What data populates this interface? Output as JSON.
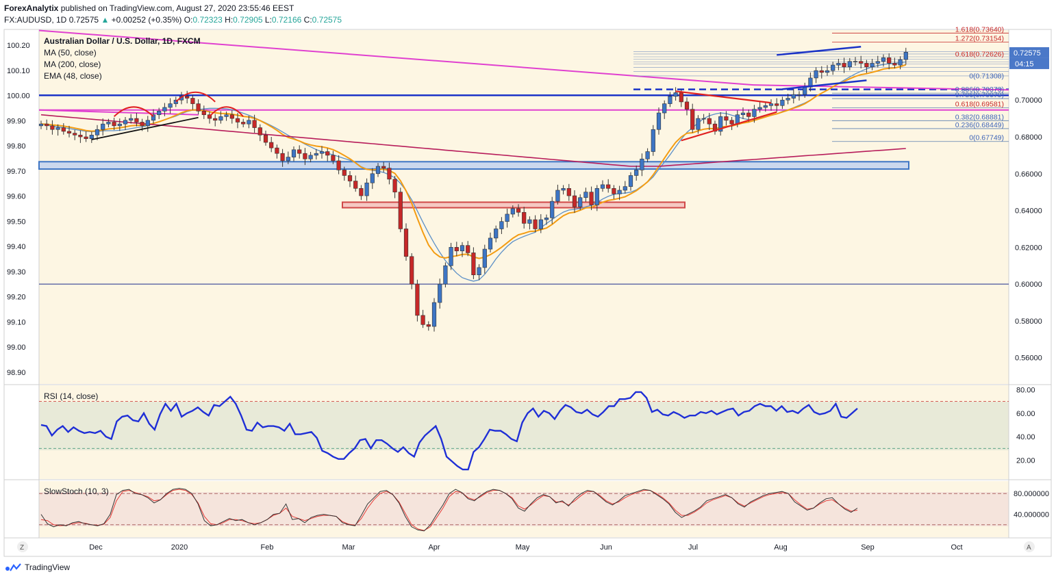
{
  "header": {
    "publisher": "ForexAnalytix",
    "published_text": "published on TradingView.com, August 27, 2020 23:55:46 EEST",
    "symbol": "FX:AUDUSD, 1D",
    "last": "0.72575",
    "change": "+0.00252 (+0.35%)",
    "open_label": "O:",
    "open": "0.72323",
    "high_label": "H:",
    "high": "0.72905",
    "low_label": "L:",
    "low": "0.72166",
    "close_label": "C:",
    "close": "0.72575"
  },
  "legend": {
    "title": "Australian Dollar / U.S. Dollar, 1D, FXCM",
    "ma50": "MA (50, close)",
    "ma200": "MA (200, close)",
    "ema48": "EMA (48, close)",
    "rsi": "RSI (14, close)",
    "stoch": "SlowStoch (10, 3)"
  },
  "colors": {
    "background": "#fdf6e3",
    "up": "#3d75c4",
    "down": "#c62828",
    "ma50": "#5b8fc7",
    "ma200": "#b71c5a",
    "ema48": "#f39c12",
    "pink_trend": "#e040d0",
    "blue_level": "#1a33c7",
    "rsi": "#1f2fd6",
    "stoch_k": "#333333",
    "stoch_d": "#e53935"
  },
  "chart_data": [
    {
      "type": "candlestick",
      "panel": "main",
      "x_labels": [
        "Dec",
        "2020",
        "Feb",
        "Mar",
        "Apr",
        "May",
        "Jun",
        "Jul",
        "Aug",
        "Sep",
        "Oct"
      ],
      "right_axis_ticks": [
        "0.70000",
        "0.68000",
        "0.66000",
        "0.64000",
        "0.62000",
        "0.60000",
        "0.58000",
        "0.56000"
      ],
      "left_axis_ticks": [
        "100.20",
        "100.10",
        "100.00",
        "99.90",
        "99.80",
        "99.70",
        "99.60",
        "99.50",
        "99.40",
        "99.30",
        "99.20",
        "99.10",
        "99.00",
        "98.90"
      ],
      "ylim_right": [
        0.548,
        0.738
      ],
      "last_price": "0.72575",
      "countdown": "04:15",
      "fib_upper": [
        {
          "label": "1.618(0.73640)",
          "value": 0.7364
        },
        {
          "label": "1.272(0.73154)",
          "value": 0.73154
        }
      ],
      "fib_lower": [
        {
          "label": "0.886(0.70373)",
          "value": 0.70373
        },
        {
          "label": "0.786(0.70079)",
          "value": 0.70079
        },
        {
          "label": "0.618(0.69581)",
          "value": 0.69581
        },
        {
          "label": "0.382(0.68881)",
          "value": 0.68881
        },
        {
          "label": "0.236(0.68449)",
          "value": 0.68449
        },
        {
          "label": "0(0.67749)",
          "value": 0.67749
        }
      ],
      "fib_cluster_labels": [
        "0.618(0.72626)",
        "0(0.71308)"
      ],
      "annotations": [
        "head and shoulders (Dec–Jan)",
        "rising wedge (Aug)",
        "triangle (Jun–Jul)"
      ],
      "closes": [
        0.687,
        0.686,
        0.684,
        0.685,
        0.683,
        0.682,
        0.681,
        0.68,
        0.679,
        0.681,
        0.684,
        0.687,
        0.688,
        0.686,
        0.687,
        0.689,
        0.69,
        0.688,
        0.686,
        0.689,
        0.692,
        0.694,
        0.696,
        0.698,
        0.7,
        0.702,
        0.701,
        0.698,
        0.694,
        0.692,
        0.69,
        0.689,
        0.691,
        0.692,
        0.69,
        0.688,
        0.687,
        0.689,
        0.685,
        0.681,
        0.677,
        0.674,
        0.671,
        0.667,
        0.669,
        0.673,
        0.671,
        0.668,
        0.67,
        0.671,
        0.672,
        0.67,
        0.667,
        0.662,
        0.659,
        0.656,
        0.652,
        0.648,
        0.655,
        0.66,
        0.664,
        0.663,
        0.657,
        0.65,
        0.63,
        0.615,
        0.6,
        0.583,
        0.578,
        0.577,
        0.59,
        0.6,
        0.61,
        0.62,
        0.618,
        0.621,
        0.617,
        0.605,
        0.609,
        0.619,
        0.625,
        0.63,
        0.634,
        0.638,
        0.641,
        0.639,
        0.633,
        0.635,
        0.63,
        0.635,
        0.636,
        0.645,
        0.651,
        0.652,
        0.648,
        0.642,
        0.647,
        0.65,
        0.643,
        0.652,
        0.654,
        0.652,
        0.649,
        0.651,
        0.653,
        0.659,
        0.662,
        0.668,
        0.672,
        0.684,
        0.693,
        0.698,
        0.702,
        0.704,
        0.699,
        0.695,
        0.684,
        0.69,
        0.69,
        0.687,
        0.683,
        0.691,
        0.689,
        0.687,
        0.692,
        0.693,
        0.691,
        0.695,
        0.696,
        0.697,
        0.698,
        0.697,
        0.7,
        0.701,
        0.703,
        0.703,
        0.707,
        0.712,
        0.716,
        0.715,
        0.716,
        0.719,
        0.72,
        0.718,
        0.721,
        0.721,
        0.72,
        0.718,
        0.72,
        0.721,
        0.723,
        0.72,
        0.719,
        0.722,
        0.726
      ]
    },
    {
      "type": "line",
      "panel": "rsi",
      "name": "RSI (14, close)",
      "right_axis_ticks": [
        "80.00",
        "60.00",
        "40.00",
        "20.00"
      ],
      "ylim": [
        8,
        82
      ],
      "levels": [
        70,
        30
      ],
      "values": [
        50,
        49,
        41,
        46,
        49,
        44,
        48,
        45,
        43,
        44,
        43,
        45,
        40,
        38,
        53,
        57,
        58,
        54,
        53,
        60,
        51,
        46,
        59,
        68,
        62,
        68,
        57,
        60,
        62,
        65,
        61,
        58,
        67,
        66,
        70,
        74,
        68,
        58,
        46,
        45,
        52,
        48,
        49,
        49,
        48,
        45,
        51,
        42,
        42,
        43,
        44,
        39,
        28,
        26,
        23,
        21,
        21,
        26,
        30,
        37,
        38,
        30,
        37,
        37,
        34,
        30,
        27,
        31,
        26,
        23,
        35,
        41,
        45,
        49,
        38,
        23,
        19,
        15,
        12,
        12,
        27,
        31,
        38,
        46,
        45,
        45,
        42,
        38,
        36,
        52,
        60,
        64,
        57,
        62,
        60,
        55,
        62,
        67,
        65,
        61,
        60,
        63,
        59,
        57,
        61,
        66,
        66,
        72,
        72,
        73,
        78,
        78,
        73,
        61,
        63,
        59,
        58,
        61,
        59,
        56,
        58,
        58,
        61,
        60,
        62,
        59,
        61,
        63,
        64,
        58,
        61,
        62,
        66,
        68,
        66,
        66,
        62,
        66,
        61,
        62,
        60,
        64,
        67,
        61,
        59,
        60,
        62,
        68,
        57,
        56,
        60,
        64
      ]
    },
    {
      "type": "line",
      "panel": "stoch",
      "name": "SlowStoch (10, 3)",
      "right_axis_ticks": [
        "80.000000",
        "40.000000"
      ],
      "ylim": [
        0,
        100
      ],
      "levels": [
        80,
        20
      ],
      "k": [
        40,
        22,
        16,
        20,
        18,
        24,
        26,
        22,
        20,
        18,
        22,
        40,
        78,
        86,
        88,
        80,
        78,
        72,
        62,
        68,
        80,
        88,
        90,
        88,
        80,
        60,
        28,
        18,
        20,
        26,
        32,
        28,
        30,
        24,
        20,
        24,
        30,
        40,
        42,
        60,
        30,
        32,
        24,
        34,
        38,
        40,
        38,
        36,
        24,
        20,
        18,
        38,
        60,
        72,
        84,
        86,
        78,
        62,
        36,
        16,
        10,
        8,
        20,
        40,
        58,
        80,
        88,
        82,
        70,
        66,
        76,
        84,
        88,
        86,
        80,
        70,
        52,
        46,
        60,
        72,
        78,
        74,
        62,
        66,
        56,
        70,
        80,
        86,
        84,
        74,
        64,
        58,
        66,
        76,
        80,
        84,
        88,
        86,
        78,
        70,
        60,
        44,
        34,
        40,
        46,
        54,
        66,
        70,
        74,
        78,
        72,
        60,
        54,
        64,
        70,
        76,
        80,
        82,
        84,
        80,
        64,
        56,
        48,
        52,
        62,
        70,
        72,
        60,
        50,
        44,
        52
      ],
      "d": [
        30,
        28,
        20,
        18,
        19,
        22,
        24,
        23,
        20,
        19,
        21,
        34,
        66,
        84,
        86,
        82,
        78,
        74,
        66,
        68,
        78,
        86,
        88,
        86,
        78,
        62,
        36,
        22,
        20,
        24,
        30,
        30,
        28,
        24,
        22,
        24,
        30,
        38,
        42,
        52,
        36,
        32,
        28,
        32,
        36,
        38,
        38,
        36,
        26,
        21,
        19,
        32,
        52,
        68,
        80,
        84,
        78,
        64,
        42,
        20,
        12,
        9,
        16,
        34,
        52,
        74,
        84,
        82,
        72,
        68,
        74,
        82,
        86,
        86,
        80,
        72,
        56,
        50,
        58,
        68,
        76,
        74,
        64,
        64,
        58,
        66,
        76,
        84,
        84,
        76,
        66,
        60,
        64,
        72,
        78,
        82,
        86,
        86,
        80,
        72,
        62,
        48,
        38,
        38,
        44,
        52,
        62,
        68,
        72,
        76,
        72,
        62,
        56,
        62,
        68,
        74,
        78,
        80,
        82,
        80,
        68,
        58,
        50,
        52,
        60,
        66,
        68,
        60,
        52,
        46,
        48
      ]
    }
  ],
  "footer": {
    "brand": "TradingView",
    "scale_left": "Z",
    "scale_right": "A"
  }
}
